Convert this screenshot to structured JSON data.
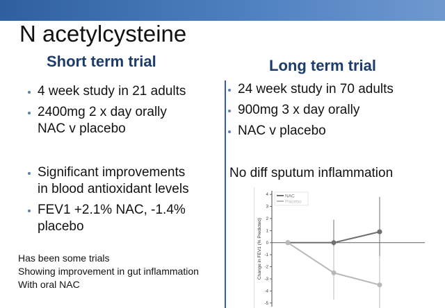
{
  "title": "N acetylcysteine",
  "left": {
    "heading": "Short term trial",
    "bullets_top": [
      [
        "4 week study in 21  adults"
      ],
      [
        "2400mg 2 x day orally",
        "NAC v placebo"
      ]
    ],
    "bullets_bottom": [
      [
        "Significant improvements",
        "in blood antioxidant levels"
      ],
      [
        "FEV1 +2.1% NAC, -1.4%",
        "placebo"
      ]
    ],
    "note": [
      "Has been some trials",
      "Showing improvement in gut inflammation",
      "With oral NAC"
    ]
  },
  "right": {
    "heading": "Long term trial",
    "bullets": [
      "24 week study in 70 adults",
      "900mg 3 x day orally",
      "NAC v placebo"
    ],
    "finding": "No diff sputum inflammation"
  },
  "chart_data": {
    "type": "line",
    "y_label": "Change in FEV1 (% Predicted)",
    "categories": [
      null,
      null,
      null
    ],
    "series": [
      {
        "name": "NAC",
        "color": "#6f6f6f",
        "values": [
          0,
          0,
          0.9
        ],
        "errors": [
          0,
          1.9,
          2.9
        ]
      },
      {
        "name": "Placebo",
        "color": "#b8b8b8",
        "values": [
          0,
          -2.5,
          -3.5
        ],
        "errors": [
          0,
          2.2,
          2.4
        ]
      }
    ],
    "ylim": [
      -5.3,
      4.3
    ],
    "yticks": [
      4,
      3,
      2,
      1,
      0,
      -1,
      -2,
      -3,
      -4,
      -5
    ],
    "legend": "upper left"
  }
}
